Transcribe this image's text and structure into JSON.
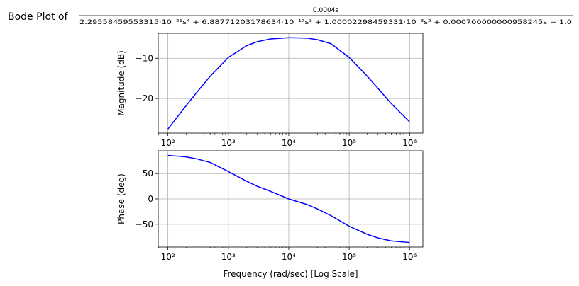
{
  "title": {
    "prefix": "Bode Plot of",
    "numerator": "0.0004s",
    "denominator": "2.29558459553315·10⁻²¹s⁴ + 6.88771203178634·10⁻¹⁷s³ + 1.00002298459331·10⁻⁸s² + 0.000700000000958245s + 1.0"
  },
  "colors": {
    "line": "#0000ff",
    "grid": "#b0b0b0",
    "axis": "#000000"
  },
  "chart_data": [
    {
      "type": "line",
      "xscale": "log",
      "xlim_decades": [
        1.84,
        6.22
      ],
      "ylim": [
        -28.6,
        -3.8
      ],
      "ylabel": "Magnitude (dB)",
      "xlabel": "",
      "grid": true,
      "x_ticks": [
        {
          "value": 100,
          "label": "10²"
        },
        {
          "value": 1000,
          "label": "10³"
        },
        {
          "value": 10000,
          "label": "10⁴"
        },
        {
          "value": 100000,
          "label": "10⁵"
        },
        {
          "value": 1000000,
          "label": "10⁶"
        }
      ],
      "y_ticks": [
        {
          "value": -10,
          "label": "−10"
        },
        {
          "value": -20,
          "label": "−20"
        }
      ],
      "series": [
        {
          "x": [
            100,
            200,
            300,
            500,
            1000,
            2000,
            3000,
            5000,
            10000,
            20000,
            30000,
            50000,
            100000,
            200000,
            300000,
            500000,
            1000000
          ],
          "y": [
            -27.6,
            -21.8,
            -18.5,
            -14.5,
            -9.8,
            -6.9,
            -5.9,
            -5.2,
            -4.9,
            -5.0,
            -5.4,
            -6.4,
            -9.8,
            -14.5,
            -17.5,
            -21.3,
            -25.8
          ]
        }
      ]
    },
    {
      "type": "line",
      "xscale": "log",
      "xlim_decades": [
        1.84,
        6.22
      ],
      "ylim": [
        -95,
        95
      ],
      "ylabel": "Phase (deg)",
      "xlabel": "Frequency (rad/sec) [Log Scale]",
      "grid": true,
      "x_ticks": [
        {
          "value": 100,
          "label": "10²"
        },
        {
          "value": 1000,
          "label": "10³"
        },
        {
          "value": 10000,
          "label": "10⁴"
        },
        {
          "value": 100000,
          "label": "10⁵"
        },
        {
          "value": 1000000,
          "label": "10⁶"
        }
      ],
      "y_ticks": [
        {
          "value": 50,
          "label": "50"
        },
        {
          "value": 0,
          "label": "0"
        },
        {
          "value": -50,
          "label": "−50"
        }
      ],
      "series": [
        {
          "x": [
            100,
            200,
            300,
            500,
            1000,
            2000,
            3000,
            5000,
            10000,
            20000,
            30000,
            50000,
            100000,
            200000,
            300000,
            500000,
            1000000
          ],
          "y": [
            86,
            83,
            79,
            72,
            54,
            35,
            25,
            15,
            0,
            -11,
            -20,
            -33,
            -54,
            -70,
            -77,
            -83,
            -86
          ]
        }
      ]
    }
  ]
}
